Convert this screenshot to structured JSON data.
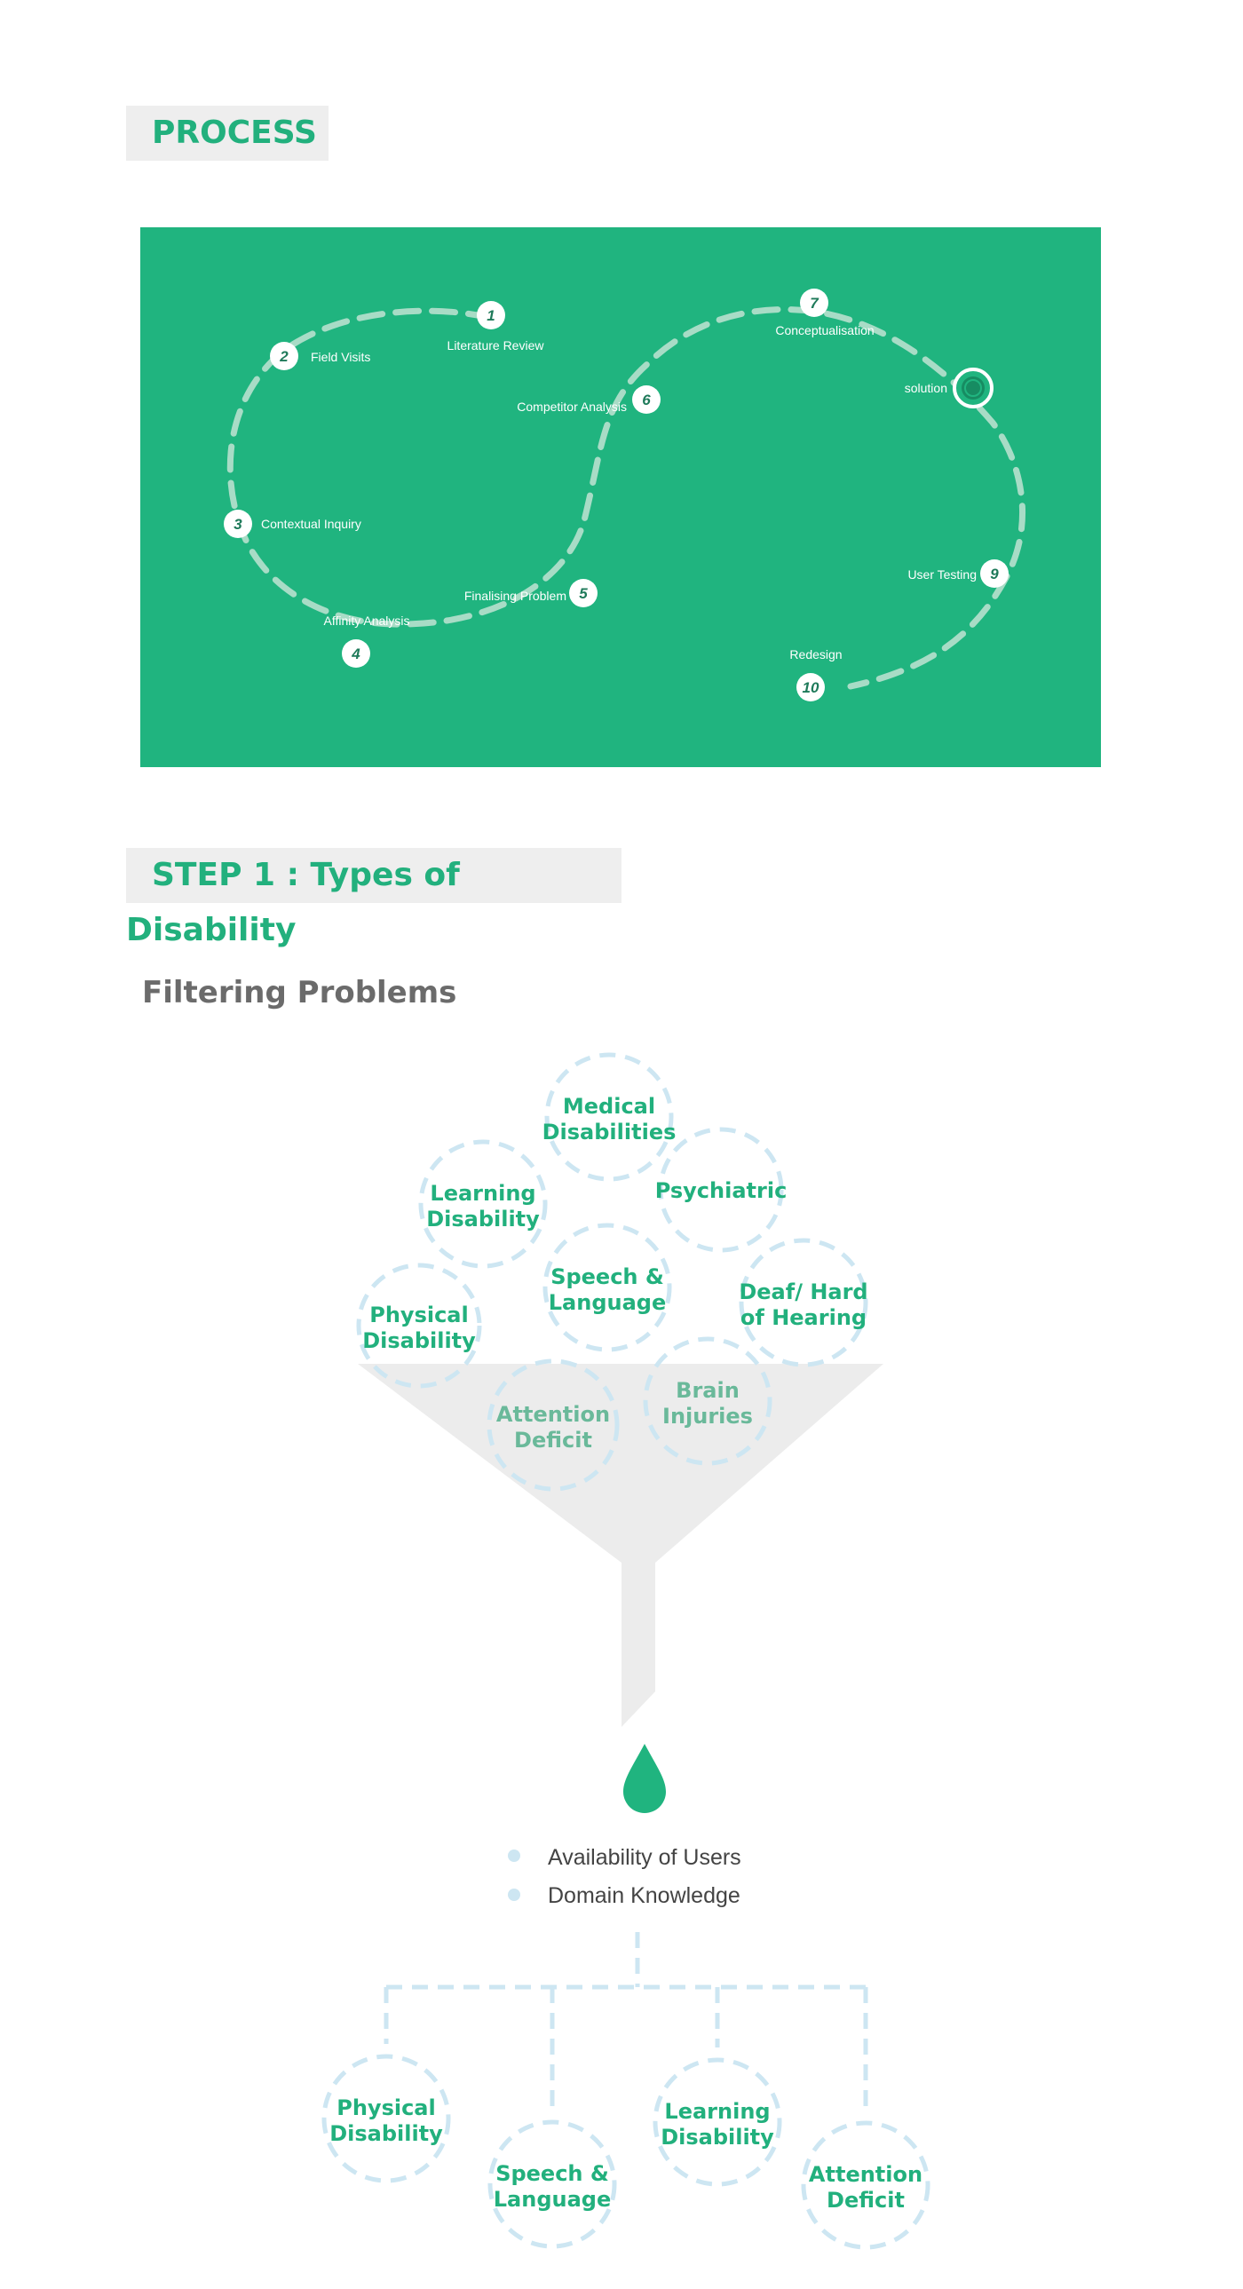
{
  "process": {
    "title": "PROCESS",
    "steps": [
      {
        "number": "1",
        "label": "Literature Review"
      },
      {
        "number": "2",
        "label": "Field Visits"
      },
      {
        "number": "3",
        "label": "Contextual Inquiry"
      },
      {
        "number": "4",
        "label": "Affinity Analysis"
      },
      {
        "number": "5",
        "label": "Finalising Problem"
      },
      {
        "number": "6",
        "label": "Competitor Analysis"
      },
      {
        "number": "7",
        "label": "Conceptualisation"
      },
      {
        "number": "9",
        "label": "User Testing"
      },
      {
        "number": "10",
        "label": "Redesign"
      }
    ],
    "solution_label": "solution",
    "colors": {
      "panel": "#20b47f",
      "path": "#a8dcc6",
      "node": "#ffffff",
      "number": "#1f7a5a"
    }
  },
  "step1": {
    "title": "STEP 1 : Types of Disability",
    "subtitle": "Filtering Problems"
  },
  "funnel": {
    "inputs": [
      {
        "line1": "Medical",
        "line2": "Disabilities"
      },
      {
        "line1": "Learning",
        "line2": "Disability"
      },
      {
        "line1": "Psychiatric",
        "line2": ""
      },
      {
        "line1": "Speech &",
        "line2": "Language"
      },
      {
        "line1": "Deaf/ Hard",
        "line2": "of Hearing"
      },
      {
        "line1": "Physical",
        "line2": "Disability"
      },
      {
        "line1": "Attention",
        "line2": "Deficit"
      },
      {
        "line1": "Brain",
        "line2": "Injuries"
      }
    ],
    "criteria": [
      "Availability of Users",
      "Domain Knowledge"
    ],
    "outputs": [
      {
        "line1": "Physical",
        "line2": "Disability"
      },
      {
        "line1": "Speech &",
        "line2": "Language"
      },
      {
        "line1": "Learning",
        "line2": "Disability"
      },
      {
        "line1": "Attention",
        "line2": "Deficit"
      }
    ],
    "colors": {
      "bubble_text": "#22b07d",
      "bubble_text_faded": "#6ab99a",
      "dash": "#cde6f2",
      "funnel": "#ececec",
      "drop": "#20b47f"
    }
  }
}
